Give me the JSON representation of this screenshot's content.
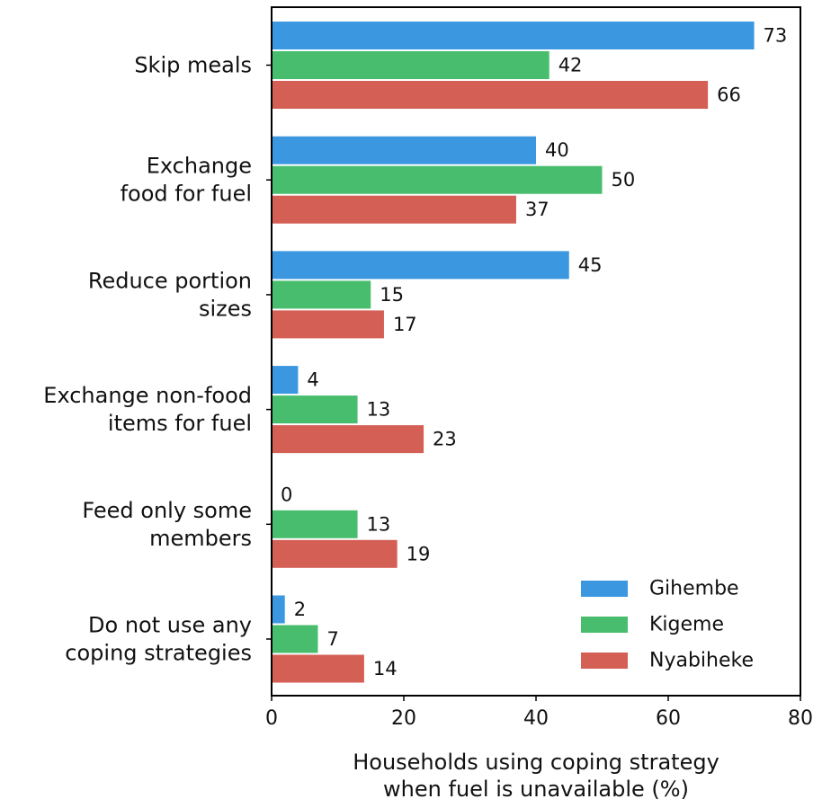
{
  "chart_data": {
    "type": "bar",
    "orientation": "horizontal",
    "categories": [
      [
        "Skip meals"
      ],
      [
        "Exchange",
        "food for fuel"
      ],
      [
        "Reduce portion",
        "sizes"
      ],
      [
        "Exchange non-food",
        "items for fuel"
      ],
      [
        "Feed only some",
        "members"
      ],
      [
        "Do not use any",
        "coping strategies"
      ]
    ],
    "series": [
      {
        "name": "Gihembe",
        "color": "#3a97e0",
        "values": [
          73,
          40,
          45,
          4,
          0,
          2
        ]
      },
      {
        "name": "Kigeme",
        "color": "#48bd6e",
        "values": [
          42,
          50,
          15,
          13,
          13,
          7
        ]
      },
      {
        "name": "Nyabiheke",
        "color": "#d45f55",
        "values": [
          66,
          37,
          17,
          23,
          19,
          14
        ]
      }
    ],
    "xlabel": [
      "Households using coping strategy",
      "when fuel is unavailable (%)"
    ],
    "xlim": [
      0,
      80
    ],
    "xticks": [
      "0",
      "20",
      "40",
      "60",
      "80"
    ],
    "legend_position": "lower-right",
    "grid": false
  }
}
